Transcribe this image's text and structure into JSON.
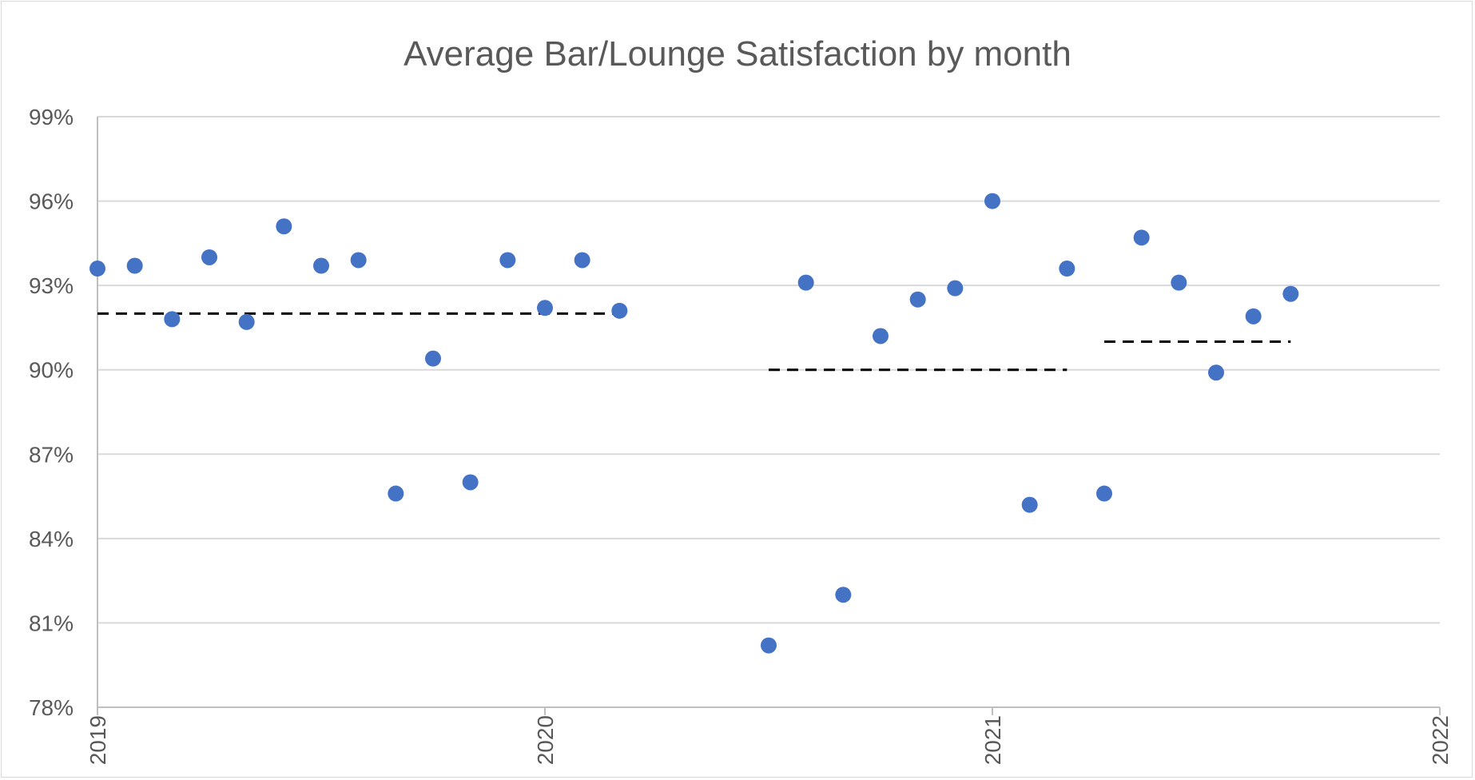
{
  "chart_data": {
    "type": "scatter",
    "title": "Average Bar/Lounge Satisfaction by month",
    "xlabel": "",
    "ylabel": "",
    "x_ticks": [
      "2019",
      "2020",
      "2021",
      "2022"
    ],
    "xlim": [
      2019.0,
      2022.0
    ],
    "y_ticks": [
      "78%",
      "81%",
      "84%",
      "87%",
      "90%",
      "93%",
      "96%",
      "99%"
    ],
    "ylim": [
      0.78,
      0.99
    ],
    "grid": "horizontal",
    "legend": "none",
    "series": [
      {
        "color": "#4472c4",
        "points": [
          {
            "x": "2019-01",
            "y": 0.936
          },
          {
            "x": "2019-02",
            "y": 0.937
          },
          {
            "x": "2019-03",
            "y": 0.918
          },
          {
            "x": "2019-04",
            "y": 0.94
          },
          {
            "x": "2019-05",
            "y": 0.917
          },
          {
            "x": "2019-06",
            "y": 0.951
          },
          {
            "x": "2019-07",
            "y": 0.937
          },
          {
            "x": "2019-08",
            "y": 0.939
          },
          {
            "x": "2019-09",
            "y": 0.856
          },
          {
            "x": "2019-10",
            "y": 0.904
          },
          {
            "x": "2019-11",
            "y": 0.86
          },
          {
            "x": "2019-12",
            "y": 0.939
          },
          {
            "x": "2020-01",
            "y": 0.922
          },
          {
            "x": "2020-02",
            "y": 0.939
          },
          {
            "x": "2020-03",
            "y": 0.921
          },
          {
            "x": "2020-07",
            "y": 0.802
          },
          {
            "x": "2020-08",
            "y": 0.931
          },
          {
            "x": "2020-09",
            "y": 0.82
          },
          {
            "x": "2020-10",
            "y": 0.912
          },
          {
            "x": "2020-11",
            "y": 0.925
          },
          {
            "x": "2020-12",
            "y": 0.929
          },
          {
            "x": "2021-01",
            "y": 0.96
          },
          {
            "x": "2021-02",
            "y": 0.852
          },
          {
            "x": "2021-03",
            "y": 0.936
          },
          {
            "x": "2021-04",
            "y": 0.856
          },
          {
            "x": "2021-05",
            "y": 0.947
          },
          {
            "x": "2021-06",
            "y": 0.931
          },
          {
            "x": "2021-07",
            "y": 0.899
          },
          {
            "x": "2021-08",
            "y": 0.919
          },
          {
            "x": "2021-09",
            "y": 0.927
          }
        ]
      }
    ],
    "average_lines": [
      {
        "x_start": "2019-01",
        "x_end": "2020-03",
        "y": 0.92,
        "color": "#000000",
        "style": "dashed"
      },
      {
        "x_start": "2020-07",
        "x_end": "2021-03",
        "y": 0.9,
        "color": "#000000",
        "style": "dashed"
      },
      {
        "x_start": "2021-04",
        "x_end": "2021-09",
        "y": 0.91,
        "color": "#000000",
        "style": "dashed"
      }
    ]
  }
}
